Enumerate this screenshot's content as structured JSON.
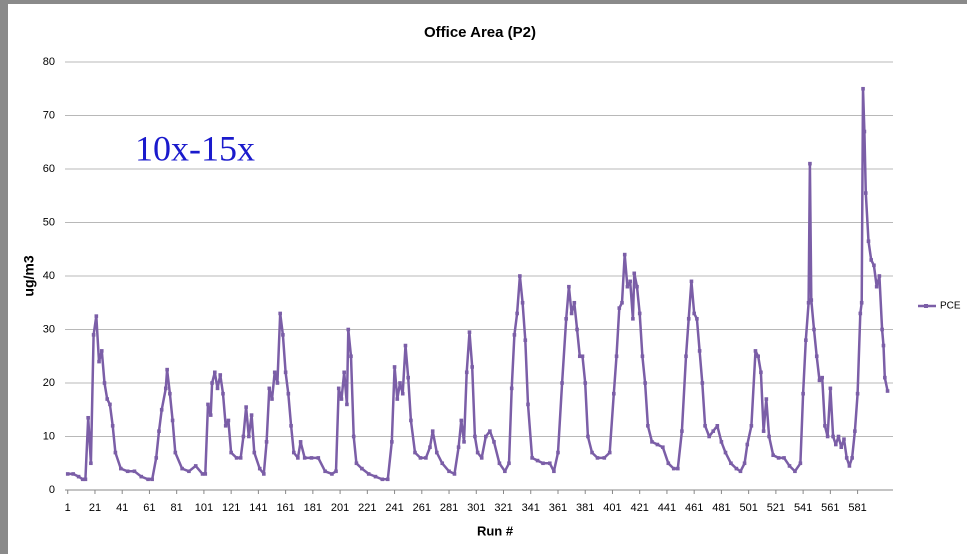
{
  "chart_data": {
    "type": "line",
    "title": "Office Area (P2)",
    "xlabel": "Run #",
    "ylabel": "ug/m3",
    "annotation": "10x-15x",
    "x": [
      1,
      5,
      9,
      12,
      14,
      16,
      18,
      20,
      22,
      24,
      26,
      28,
      30,
      32,
      34,
      36,
      40,
      45,
      50,
      55,
      60,
      63,
      66,
      68,
      70,
      73,
      74,
      76,
      78,
      80,
      85,
      90,
      95,
      100,
      102,
      104,
      106,
      107,
      109,
      111,
      113,
      115,
      117,
      119,
      121,
      125,
      128,
      130,
      132,
      134,
      136,
      138,
      142,
      145,
      147,
      149,
      151,
      153,
      155,
      157,
      159,
      161,
      163,
      165,
      167,
      170,
      172,
      175,
      180,
      185,
      190,
      195,
      198,
      200,
      202,
      204,
      206,
      207,
      209,
      211,
      213,
      217,
      222,
      227,
      232,
      236,
      239,
      241,
      243,
      245,
      247,
      249,
      251,
      253,
      256,
      260,
      264,
      267,
      269,
      272,
      276,
      281,
      285,
      288,
      290,
      292,
      294,
      296,
      298,
      300,
      302,
      305,
      308,
      311,
      314,
      318,
      322,
      325,
      327,
      329,
      331,
      333,
      335,
      337,
      339,
      342,
      346,
      350,
      355,
      358,
      361,
      364,
      367,
      369,
      371,
      373,
      375,
      377,
      379,
      381,
      383,
      386,
      390,
      395,
      399,
      402,
      404,
      406,
      408,
      410,
      412,
      414,
      416,
      417,
      419,
      421,
      423,
      425,
      427,
      430,
      434,
      438,
      442,
      446,
      449,
      452,
      455,
      457,
      459,
      461,
      463,
      465,
      467,
      469,
      472,
      475,
      478,
      481,
      484,
      488,
      492,
      495,
      498,
      500,
      503,
      506,
      508,
      510,
      512,
      514,
      516,
      519,
      523,
      527,
      531,
      535,
      539,
      541,
      543,
      545,
      546,
      547,
      549,
      551,
      553,
      555,
      557,
      559,
      561,
      563,
      565,
      567,
      569,
      571,
      573,
      575,
      577,
      579,
      581,
      583,
      584,
      585,
      586,
      587,
      589,
      591,
      593,
      595,
      597,
      599,
      600,
      601,
      603
    ],
    "series": [
      {
        "name": "PCE",
        "color": "#7b5ea7",
        "values": [
          3,
          3,
          2.5,
          2,
          2,
          13.5,
          5,
          29,
          32.5,
          24,
          26,
          20,
          17,
          16,
          12,
          7,
          4,
          3.5,
          3.5,
          2.5,
          2,
          2,
          6,
          11,
          15,
          19,
          22.5,
          18,
          13,
          7,
          4,
          3.5,
          4.5,
          3,
          3,
          16,
          14,
          20,
          22,
          19,
          21.5,
          18,
          12,
          13,
          7,
          6,
          6,
          10,
          15.5,
          10,
          14,
          7,
          4,
          3,
          9,
          19,
          17,
          22,
          20,
          33,
          29,
          22,
          18,
          12,
          7,
          6,
          9,
          6,
          6,
          6,
          3.5,
          3,
          3.5,
          19,
          17,
          22,
          16,
          30,
          25,
          10,
          5,
          4,
          3,
          2.5,
          2,
          2,
          9,
          23,
          17,
          20,
          18,
          27,
          21,
          13,
          7,
          6,
          6,
          8,
          11,
          7,
          5,
          3.5,
          3,
          8,
          13,
          9,
          22,
          29.5,
          23,
          10,
          7,
          6,
          10,
          11,
          9,
          5,
          3.5,
          5,
          19,
          29,
          33,
          40,
          35,
          28,
          16,
          6,
          5.5,
          5,
          5,
          3.5,
          7,
          20,
          32,
          38,
          33,
          35,
          30,
          25,
          25,
          20,
          10,
          7,
          6,
          6,
          7,
          18,
          25,
          34,
          35,
          44,
          38,
          39,
          32,
          40.5,
          38,
          33,
          25,
          20,
          12,
          9,
          8.5,
          8,
          5,
          4,
          4,
          11,
          25,
          32,
          39,
          33,
          32,
          26,
          20,
          12,
          10,
          11,
          12,
          9,
          7,
          5,
          4,
          3.5,
          5,
          8.5,
          12,
          26,
          25,
          22,
          11,
          17,
          10,
          6.5,
          6,
          6,
          4.5,
          3.5,
          5,
          18,
          28,
          35,
          61,
          35.5,
          30,
          25,
          20.5,
          21,
          12,
          10,
          19,
          10,
          8.5,
          10,
          8,
          9.5,
          6,
          4.5,
          6,
          11,
          18,
          33,
          35,
          75,
          67,
          55.5,
          46.5,
          43,
          42,
          38,
          40,
          30,
          27,
          21,
          18.5
        ]
      }
    ],
    "xlim": [
      -1,
      607
    ],
    "xticks": [
      1,
      21,
      41,
      61,
      81,
      101,
      121,
      141,
      161,
      181,
      201,
      221,
      241,
      261,
      281,
      301,
      321,
      341,
      361,
      381,
      401,
      421,
      441,
      461,
      481,
      501,
      521,
      541,
      561,
      581
    ],
    "ylim": [
      0,
      80
    ],
    "yticks": [
      0,
      10,
      20,
      30,
      40,
      50,
      60,
      70,
      80
    ],
    "grid": true,
    "legend": "right"
  }
}
